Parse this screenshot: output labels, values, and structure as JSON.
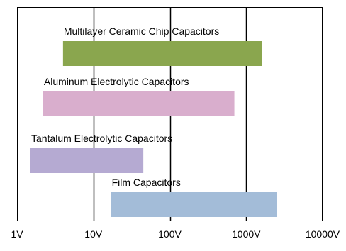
{
  "chart_data": {
    "type": "bar",
    "orientation": "horizontal-range",
    "x_scale": "log",
    "xlim": [
      1,
      10000
    ],
    "grid_x": true,
    "x_ticks": [
      "1V",
      "10V",
      "100V",
      "1000V",
      "10000V"
    ],
    "x_tick_values": [
      1,
      10,
      100,
      1000,
      10000
    ],
    "series": [
      {
        "name": "Multilayer Ceramic Chip Capacitors",
        "start": 4,
        "end": 1600,
        "color": "#8aa64e"
      },
      {
        "name": "Aluminum Electrolytic Capacitors",
        "start": 2.2,
        "end": 700,
        "color": "#d9aecd"
      },
      {
        "name": "Tantalum Electrolytic Capacitors",
        "start": 1.5,
        "end": 45,
        "color": "#b5aad2"
      },
      {
        "name": "Film Capacitors",
        "start": 17,
        "end": 2500,
        "color": "#a3bcd8"
      }
    ]
  }
}
